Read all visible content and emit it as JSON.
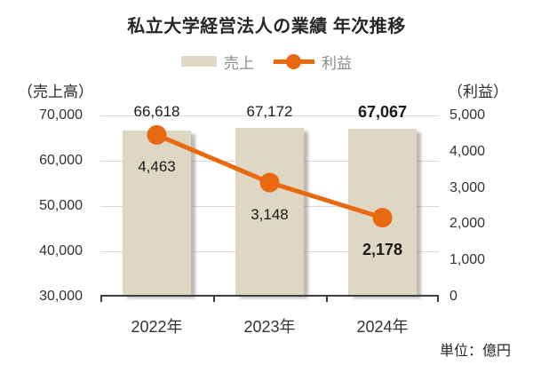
{
  "title": "私立大学経営法人の業績 年次推移",
  "unit_note": "単位：億円",
  "colors": {
    "bar": "#ddd7c4",
    "line": "#e8690f",
    "gridline": "#d9d9d9",
    "axis_line": "#3f3f3f",
    "legend_text": "#8c8c8c",
    "text": "#262626"
  },
  "chart_data": {
    "type": "bar+line",
    "categories": [
      "2022年",
      "2023年",
      "2024年"
    ],
    "series": [
      {
        "name": "売上",
        "type": "bar",
        "axis": "left",
        "values": [
          66618,
          67172,
          67067
        ],
        "labels": [
          "66,618",
          "67,172",
          "67,067"
        ],
        "label_bold": [
          false,
          false,
          true
        ],
        "color": "#ddd7c4"
      },
      {
        "name": "利益",
        "type": "line",
        "axis": "right",
        "values": [
          4463,
          3148,
          2178
        ],
        "labels": [
          "4,463",
          "3,148",
          "2,178"
        ],
        "label_bold": [
          false,
          false,
          true
        ],
        "color": "#e8690f"
      }
    ],
    "left_axis": {
      "title": "（売上高）",
      "min": 30000,
      "max": 70000,
      "tick_step": 10000,
      "tick_labels": [
        "70,000",
        "60,000",
        "50,000",
        "40,000",
        "30,000"
      ]
    },
    "right_axis": {
      "title": "（利益）",
      "min": 0,
      "max": 5000,
      "tick_step": 1000,
      "tick_labels": [
        "5,000",
        "4,000",
        "3,000",
        "2,000",
        "1,000",
        "0"
      ]
    },
    "grid": true,
    "legend_position": "top",
    "unit_note": "単位：億円"
  }
}
